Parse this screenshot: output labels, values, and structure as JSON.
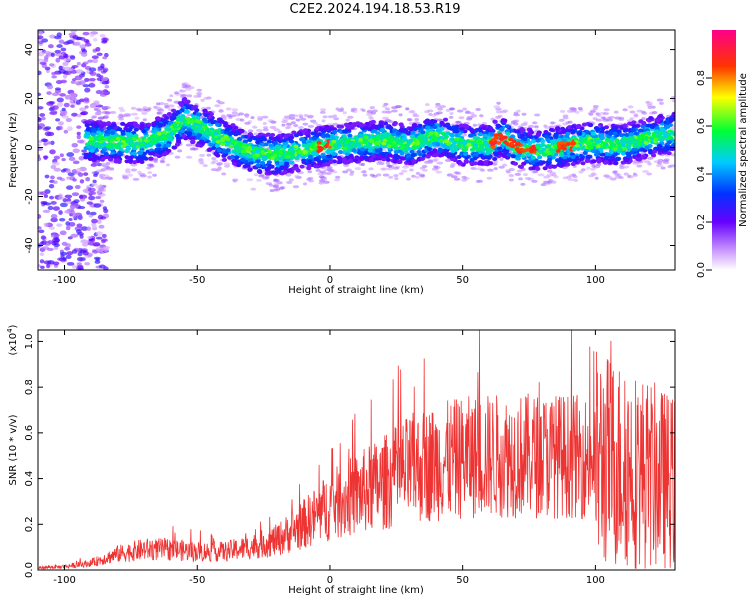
{
  "title": "C2E2.2024.194.18.53.R19",
  "chart_data": [
    {
      "type": "heatmap",
      "xlabel": "Height of straight line (km)",
      "ylabel": "Frequency (Hz)",
      "xlim": [
        -110,
        130
      ],
      "ylim": [
        -50,
        48
      ],
      "x_ticks": [
        -100,
        -50,
        0,
        50,
        100
      ],
      "y_ticks": [
        -40,
        -20,
        0,
        20,
        40
      ],
      "colorbar": {
        "label": "Normalized spectral amplitude",
        "range": [
          0,
          1
        ],
        "ticks": [
          0.0,
          0.2,
          0.4,
          0.6,
          0.8
        ],
        "tick_labels": [
          "0.0",
          "0.2",
          "0.4",
          "0.6",
          "0.8"
        ],
        "colormap": "rainbow (white-violet-blue-cyan-green-yellow-red-magenta)"
      },
      "ridge": {
        "x": [
          -95,
          -80,
          -70,
          -60,
          -55,
          -50,
          -40,
          -30,
          -20,
          -10,
          0,
          10,
          20,
          30,
          40,
          50,
          60,
          65,
          70,
          80,
          90,
          100,
          110,
          120,
          130
        ],
        "frequency": [
          3,
          2,
          2,
          6,
          12,
          9,
          3,
          -2,
          -3,
          -1,
          1,
          2,
          3,
          1,
          5,
          1,
          1,
          5,
          0,
          -1,
          1,
          2,
          1,
          4,
          6
        ]
      },
      "grid": false
    },
    {
      "type": "line",
      "xlabel": "Height of straight line (km)",
      "ylabel": "SNR (10 * v/v)",
      "y_scale_label": "(x10",
      "y_scale_exp": "4",
      "y_scale_close": ")",
      "xlim": [
        -110,
        130
      ],
      "ylim": [
        0,
        1.05
      ],
      "x_ticks": [
        -100,
        -50,
        0,
        50,
        100
      ],
      "y_ticks": [
        0.0,
        0.2,
        0.4,
        0.6,
        0.8,
        1.0
      ],
      "y_tick_labels": [
        "0.0",
        "0.2",
        "0.4",
        "0.6",
        "0.8",
        "1.0"
      ],
      "color": "#ee3333",
      "trend": {
        "x": [
          -110,
          -100,
          -90,
          -80,
          -70,
          -60,
          -50,
          -40,
          -30,
          -20,
          -10,
          0,
          10,
          20,
          30,
          40,
          50,
          60,
          70,
          80,
          90,
          100,
          110,
          120,
          130
        ],
        "y": [
          0.01,
          0.015,
          0.03,
          0.07,
          0.09,
          0.09,
          0.08,
          0.08,
          0.1,
          0.13,
          0.2,
          0.28,
          0.33,
          0.38,
          0.44,
          0.47,
          0.49,
          0.5,
          0.5,
          0.5,
          0.5,
          0.49,
          0.46,
          0.42,
          0.38
        ]
      },
      "grid": false
    }
  ]
}
